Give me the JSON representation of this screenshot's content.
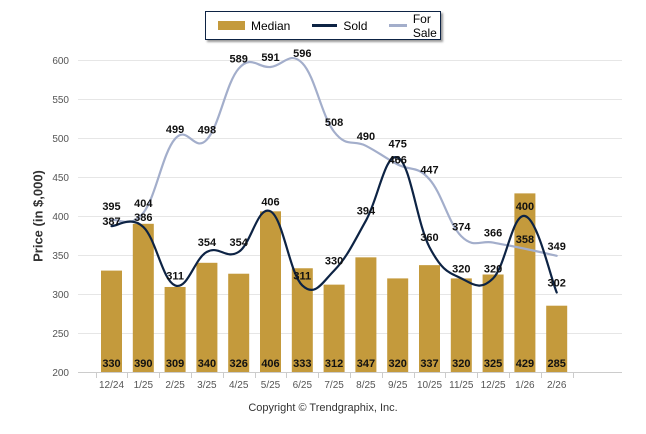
{
  "legend": {
    "items": [
      {
        "label": "Median",
        "type": "bar",
        "color": "#c49a3c"
      },
      {
        "label": "Sold",
        "type": "line",
        "color": "#0d2344"
      },
      {
        "label": "For Sale",
        "type": "line",
        "color": "#a3aecb"
      }
    ]
  },
  "copyright": "Copyright © Trendgraphix, Inc.",
  "chart_data": {
    "type": "bar",
    "title": "",
    "xlabel": "",
    "ylabel": "Price (in $,000)",
    "ylim": [
      200,
      600
    ],
    "yticks": [
      200,
      250,
      300,
      350,
      400,
      450,
      500,
      550,
      600
    ],
    "grid": true,
    "legend_position": "top-center",
    "categories": [
      "12/24",
      "1/25",
      "2/25",
      "3/25",
      "4/25",
      "5/25",
      "6/25",
      "7/25",
      "8/25",
      "9/25",
      "10/25",
      "11/25",
      "12/25",
      "1/26",
      "2/26"
    ],
    "series": [
      {
        "name": "Median",
        "type": "bar",
        "color": "#c49a3c",
        "values": [
          330,
          390,
          309,
          340,
          326,
          406,
          333,
          312,
          347,
          320,
          337,
          320,
          325,
          429,
          285
        ]
      },
      {
        "name": "Sold",
        "type": "line",
        "color": "#0d2344",
        "values": [
          387,
          386,
          311,
          354,
          354,
          406,
          311,
          330,
          394,
          475,
          360,
          320,
          320,
          400,
          302
        ]
      },
      {
        "name": "For Sale",
        "type": "line",
        "color": "#a3aecb",
        "values": [
          395,
          404,
          499,
          498,
          589,
          591,
          596,
          508,
          490,
          466,
          447,
          374,
          366,
          358,
          349
        ]
      }
    ]
  }
}
